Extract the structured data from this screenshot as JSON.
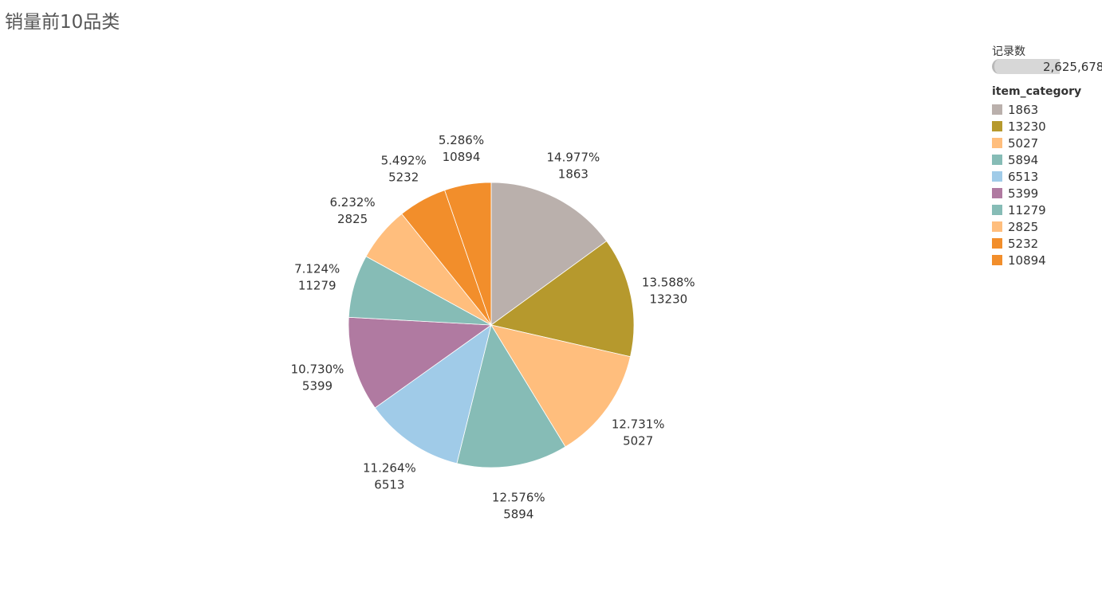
{
  "chart_title": "销量前10品类",
  "size_legend": {
    "title": "记录数",
    "value_label": "2,625,678"
  },
  "color_legend": {
    "title": "item_category"
  },
  "chart_data": {
    "type": "pie",
    "title": "销量前10品类",
    "slices": [
      {
        "label": "1863",
        "percent": 14.977,
        "percent_label": "14.977%",
        "color": "#BAB0AC"
      },
      {
        "label": "13230",
        "percent": 13.588,
        "percent_label": "13.588%",
        "color": "#B6992D"
      },
      {
        "label": "5027",
        "percent": 12.731,
        "percent_label": "12.731%",
        "color": "#FFBE7D"
      },
      {
        "label": "5894",
        "percent": 12.576,
        "percent_label": "12.576%",
        "color": "#86BCB6"
      },
      {
        "label": "6513",
        "percent": 11.264,
        "percent_label": "11.264%",
        "color": "#A0CBE8"
      },
      {
        "label": "5399",
        "percent": 10.73,
        "percent_label": "10.730%",
        "color": "#B07AA1"
      },
      {
        "label": "11279",
        "percent": 7.124,
        "percent_label": "7.124%",
        "color": "#86BCB6"
      },
      {
        "label": "2825",
        "percent": 6.232,
        "percent_label": "6.232%",
        "color": "#FFBE7D"
      },
      {
        "label": "5232",
        "percent": 5.492,
        "percent_label": "5.492%",
        "color": "#F28E2B"
      },
      {
        "label": "10894",
        "percent": 5.286,
        "percent_label": "5.286%",
        "color": "#F28E2B"
      }
    ],
    "legend_placement": "right"
  }
}
